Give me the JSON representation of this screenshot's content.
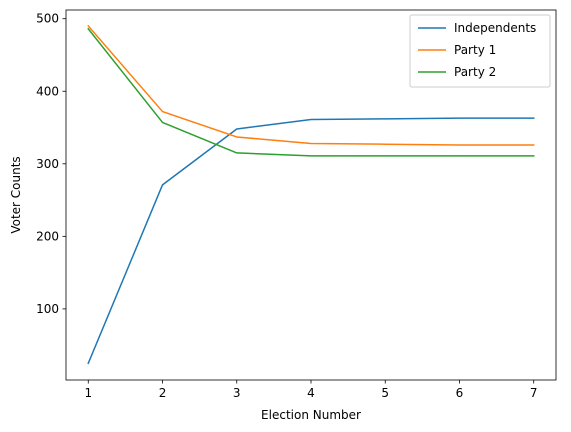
{
  "chart_data": {
    "type": "line",
    "title": "",
    "xlabel": "Election Number",
    "ylabel": "Voter Counts",
    "x": [
      1,
      2,
      3,
      4,
      5,
      6,
      7
    ],
    "xlim": [
      0.7,
      7.3
    ],
    "ylim": [
      2,
      512
    ],
    "xticks": [
      1,
      2,
      3,
      4,
      5,
      6,
      7
    ],
    "yticks": [
      100,
      200,
      300,
      400,
      500
    ],
    "grid": false,
    "legend_position": "top-right",
    "series": [
      {
        "name": "Independents",
        "color": "#1f77b4",
        "values": [
          25,
          271,
          348,
          361,
          362,
          363,
          363
        ]
      },
      {
        "name": "Party 1",
        "color": "#ff7f0e",
        "values": [
          490,
          372,
          337,
          328,
          327,
          326,
          326
        ]
      },
      {
        "name": "Party 2",
        "color": "#2ca02c",
        "values": [
          486,
          357,
          315,
          311,
          311,
          311,
          311
        ]
      }
    ]
  }
}
